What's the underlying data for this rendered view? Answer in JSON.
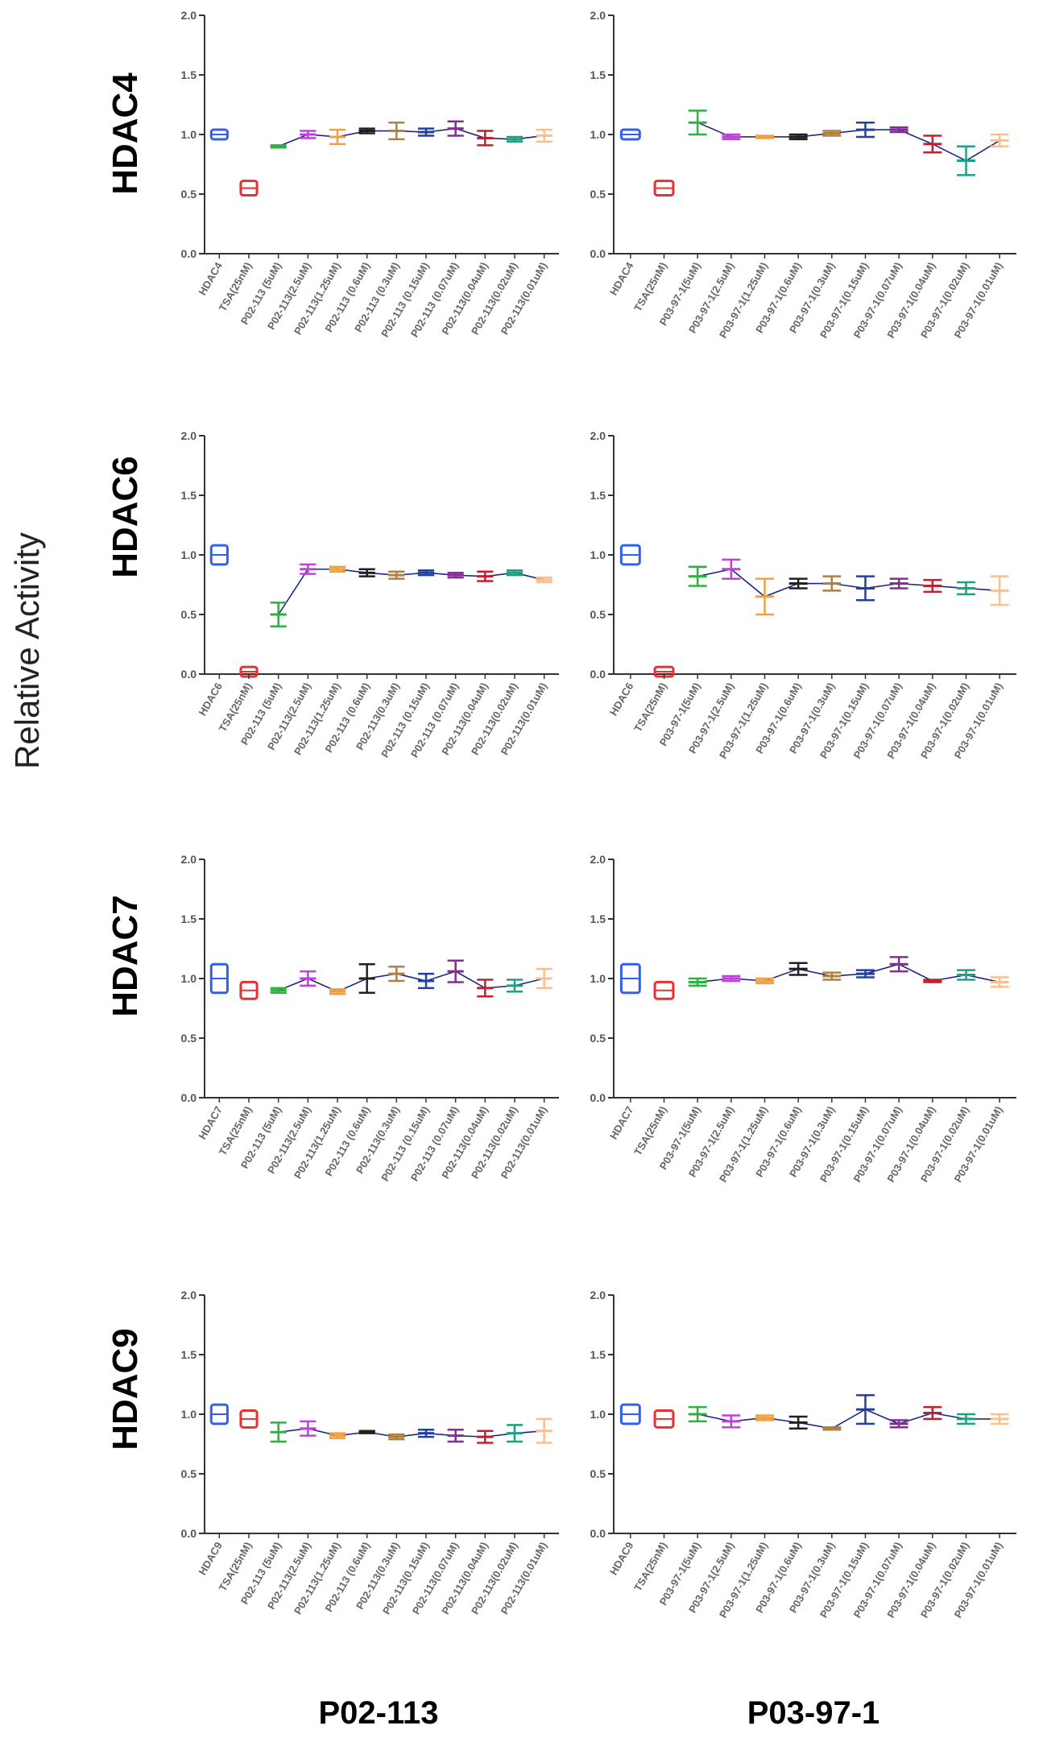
{
  "y_label": "Relative Activity",
  "row_labels": [
    "HDAC4",
    "HDAC6",
    "HDAC7",
    "HDAC9"
  ],
  "column_labels": [
    "P02-113",
    "P03-97-1"
  ],
  "chart_data": [
    {
      "type": "errorbar",
      "categories": [
        "HDAC4",
        "TSA(25nM)",
        "P02-113 (5uM)",
        "P02-113(2.5uM)",
        "P02-113(1.25uM)",
        "P02-113 (0.6uM)",
        "P02-113 (0.3uM)",
        "P02-113 (0.15uM)",
        "P02-113 (0.07uM)",
        "P02-113(0.04uM)",
        "P02-113(0.02uM)",
        "P02-113(0.01uM)"
      ],
      "values": [
        1.0,
        0.55,
        0.9,
        1.0,
        0.98,
        1.03,
        1.03,
        1.02,
        1.05,
        0.97,
        0.96,
        0.99
      ],
      "errors": [
        0.02,
        0.04,
        0.01,
        0.03,
        0.06,
        0.02,
        0.07,
        0.03,
        0.06,
        0.06,
        0.02,
        0.05
      ],
      "colors": [
        "#3060f0",
        "#e83030",
        "#30b040",
        "#c040e0",
        "#f0a040",
        "#202020",
        "#b08040",
        "#2040a0",
        "#803090",
        "#c02030",
        "#20a080",
        "#f8c090"
      ],
      "line_color": "#1a2a80",
      "ylim": [
        0,
        2
      ],
      "yticks": [
        {
          "value": 0,
          "label": "0.0"
        },
        {
          "value": 0.5,
          "label": "0.5"
        },
        {
          "value": 1,
          "label": "1.0"
        },
        {
          "value": 1.5,
          "label": "1.5"
        },
        {
          "value": 2,
          "label": "2.0"
        }
      ]
    },
    {
      "type": "errorbar",
      "categories": [
        "HDAC4",
        "TSA(25nM)",
        "P03-97-1(5uM)",
        "P03-97-1(2.5uM)",
        "P03-97-1(1.25uM)",
        "P03-97-1(0.6uM)",
        "P03-97-1(0.3uM)",
        "P03-97-1(0.15uM)",
        "P03-97-1(0.07uM)",
        "P03-97-1(0.04uM)",
        "P03-97-1(0.02uM)",
        "P03-97-1(0.01uM)"
      ],
      "values": [
        1.0,
        0.55,
        1.1,
        0.98,
        0.98,
        0.98,
        1.01,
        1.04,
        1.04,
        0.92,
        0.78,
        0.95
      ],
      "errors": [
        0.02,
        0.04,
        0.1,
        0.02,
        0.01,
        0.02,
        0.02,
        0.06,
        0.02,
        0.07,
        0.12,
        0.05
      ],
      "colors": [
        "#3060f0",
        "#e83030",
        "#30b040",
        "#c040e0",
        "#f0a040",
        "#202020",
        "#b08040",
        "#2040a0",
        "#803090",
        "#c02030",
        "#20a080",
        "#f8c090"
      ],
      "line_color": "#1a2a80",
      "ylim": [
        0,
        2
      ],
      "yticks": [
        {
          "value": 0,
          "label": "0.0"
        },
        {
          "value": 0.5,
          "label": "0.5"
        },
        {
          "value": 1,
          "label": "1.0"
        },
        {
          "value": 1.5,
          "label": "1.5"
        },
        {
          "value": 2,
          "label": "2.0"
        }
      ]
    },
    {
      "type": "errorbar",
      "categories": [
        "HDAC6",
        "TSA(25nM)",
        "P02-113 (5uM)",
        "P02-113(2.5uM)",
        "P02-113(1.25uM)",
        "P02-113 (0.6uM)",
        "P02-113(0.3uM)",
        "P02-113 (0.15uM)",
        "P02-113 (0.07uM)",
        "P02-113(0.04uM)",
        "P02-113(0.02uM)",
        "P02-113(0.01uM)"
      ],
      "values": [
        1.0,
        0.02,
        0.5,
        0.88,
        0.88,
        0.85,
        0.83,
        0.85,
        0.83,
        0.82,
        0.85,
        0.79
      ],
      "errors": [
        0.06,
        0.02,
        0.1,
        0.04,
        0.02,
        0.03,
        0.03,
        0.02,
        0.02,
        0.04,
        0.02,
        0.02
      ],
      "colors": [
        "#3060f0",
        "#e83030",
        "#30b040",
        "#c040e0",
        "#f0a040",
        "#202020",
        "#b08040",
        "#2040a0",
        "#803090",
        "#c02030",
        "#20a080",
        "#f8c090"
      ],
      "line_color": "#1a2a80",
      "ylim": [
        0,
        2
      ],
      "yticks": [
        {
          "value": 0,
          "label": "0.0"
        },
        {
          "value": 0.5,
          "label": "0.5"
        },
        {
          "value": 1,
          "label": "1.0"
        },
        {
          "value": 1.5,
          "label": "1.5"
        },
        {
          "value": 2,
          "label": "2.0"
        }
      ]
    },
    {
      "type": "errorbar",
      "categories": [
        "HDAC6",
        "TSA(25nM)",
        "P03-97-1(5uM)",
        "P03-97-1(2.5uM)",
        "P03-97-1(1.25uM)",
        "P03-97-1(0.6uM)",
        "P03-97-1(0.3uM)",
        "P03-97-1(0.15uM)",
        "P03-97-1(0.07uM)",
        "P03-97-1(0.04uM)",
        "P03-97-1(0.02uM)",
        "P03-97-1(0.01uM)"
      ],
      "values": [
        1.0,
        0.02,
        0.82,
        0.88,
        0.65,
        0.76,
        0.76,
        0.72,
        0.76,
        0.74,
        0.72,
        0.7
      ],
      "errors": [
        0.06,
        0.02,
        0.08,
        0.08,
        0.15,
        0.04,
        0.06,
        0.1,
        0.04,
        0.05,
        0.05,
        0.12
      ],
      "colors": [
        "#3060f0",
        "#e83030",
        "#30b040",
        "#c040e0",
        "#f0a040",
        "#202020",
        "#b08040",
        "#2040a0",
        "#803090",
        "#c02030",
        "#20a080",
        "#f8c090"
      ],
      "line_color": "#1a2a80",
      "ylim": [
        0,
        2
      ],
      "yticks": [
        {
          "value": 0,
          "label": "0.0"
        },
        {
          "value": 0.5,
          "label": "0.5"
        },
        {
          "value": 1,
          "label": "1.0"
        },
        {
          "value": 1.5,
          "label": "1.5"
        },
        {
          "value": 2,
          "label": "2.0"
        }
      ]
    },
    {
      "type": "errorbar",
      "categories": [
        "HDAC7",
        "TSA(25nM)",
        "P02-113 (5uM)",
        "P02-113(2.5uM)",
        "P02-113(1.25uM)",
        "P02-113 (0.6uM)",
        "P02-113(0.3uM)",
        "P02-113 (0.15uM)",
        "P02-113 (0.07uM)",
        "P02-113(0.04uM)",
        "P02-113(0.02uM)",
        "P02-113(0.01uM)"
      ],
      "values": [
        1.0,
        0.9,
        0.9,
        1.0,
        0.89,
        1.0,
        1.04,
        0.98,
        1.06,
        0.92,
        0.94,
        1.0
      ],
      "errors": [
        0.1,
        0.05,
        0.02,
        0.06,
        0.02,
        0.12,
        0.06,
        0.06,
        0.09,
        0.07,
        0.05,
        0.08
      ],
      "colors": [
        "#3060f0",
        "#e83030",
        "#30b040",
        "#c040e0",
        "#f0a040",
        "#202020",
        "#b08040",
        "#2040a0",
        "#803090",
        "#c02030",
        "#20a080",
        "#f8c090"
      ],
      "line_color": "#1a2a80",
      "ylim": [
        0,
        2
      ],
      "yticks": [
        {
          "value": 0,
          "label": "0.0"
        },
        {
          "value": 0.5,
          "label": "0.5"
        },
        {
          "value": 1,
          "label": "1.0"
        },
        {
          "value": 1.5,
          "label": "1.5"
        },
        {
          "value": 2,
          "label": "2.0"
        }
      ]
    },
    {
      "type": "errorbar",
      "categories": [
        "HDAC7",
        "TSA(25nM)",
        "P03-97-1(5uM)",
        "P03-97-1(2.5uM)",
        "P03-97-1(1.25uM)",
        "P03-97-1(0.6uM)",
        "P03-97-1(0.3uM)",
        "P03-97-1(0.15uM)",
        "P03-97-1(0.07uM)",
        "P03-97-1(0.04uM)",
        "P03-97-1(0.02uM)",
        "P03-97-1(0.01uM)"
      ],
      "values": [
        1.0,
        0.9,
        0.97,
        1.0,
        0.98,
        1.08,
        1.02,
        1.04,
        1.12,
        0.98,
        1.03,
        0.97
      ],
      "errors": [
        0.1,
        0.05,
        0.03,
        0.02,
        0.02,
        0.05,
        0.03,
        0.03,
        0.06,
        0.01,
        0.04,
        0.04
      ],
      "colors": [
        "#3060f0",
        "#e83030",
        "#30b040",
        "#c040e0",
        "#f0a040",
        "#202020",
        "#b08040",
        "#2040a0",
        "#803090",
        "#c02030",
        "#20a080",
        "#f8c090"
      ],
      "line_color": "#1a2a80",
      "ylim": [
        0,
        2
      ],
      "yticks": [
        {
          "value": 0,
          "label": "0.0"
        },
        {
          "value": 0.5,
          "label": "0.5"
        },
        {
          "value": 1,
          "label": "1.0"
        },
        {
          "value": 1.5,
          "label": "1.5"
        },
        {
          "value": 2,
          "label": "2.0"
        }
      ]
    },
    {
      "type": "errorbar",
      "categories": [
        "HDAC9",
        "TSA(25nM)",
        "P02-113 (5uM)",
        "P02-113(2.5uM)",
        "P02-113(1.25uM)",
        "P02-113 (0.6uM)",
        "P02-113(0.3uM)",
        "P02-113(0.15uM)",
        "P02-113(0.07uM)",
        "P02-113(0.04uM)",
        "P02-113(0.02uM)",
        "P02-113(0.01uM)"
      ],
      "values": [
        1.0,
        0.96,
        0.85,
        0.88,
        0.82,
        0.85,
        0.81,
        0.84,
        0.82,
        0.81,
        0.84,
        0.86
      ],
      "errors": [
        0.06,
        0.05,
        0.08,
        0.06,
        0.02,
        0.01,
        0.02,
        0.03,
        0.05,
        0.05,
        0.07,
        0.1
      ],
      "colors": [
        "#3060f0",
        "#e83030",
        "#30b040",
        "#c040e0",
        "#f0a040",
        "#202020",
        "#b08040",
        "#2040a0",
        "#803090",
        "#c02030",
        "#20a080",
        "#f8c090"
      ],
      "line_color": "#1a2a80",
      "ylim": [
        0,
        2
      ],
      "yticks": [
        {
          "value": 0,
          "label": "0.0"
        },
        {
          "value": 0.5,
          "label": "0.5"
        },
        {
          "value": 1,
          "label": "1.0"
        },
        {
          "value": 1.5,
          "label": "1.5"
        },
        {
          "value": 2,
          "label": "2.0"
        }
      ]
    },
    {
      "type": "errorbar",
      "categories": [
        "HDAC9",
        "TSA(25nM)",
        "P03-97-1(5uM)",
        "P03-97-1(2.5uM)",
        "P03-97-1(1.25uM)",
        "P03-97-1(0.6uM)",
        "P03-97-1(0.3uM)",
        "P03-97-1(0.15uM)",
        "P03-97-1(0.07uM)",
        "P03-97-1(0.04uM)",
        "P03-97-1(0.02uM)",
        "P03-97-1(0.01uM)"
      ],
      "values": [
        1.0,
        0.96,
        1.0,
        0.94,
        0.97,
        0.93,
        0.88,
        1.04,
        0.92,
        1.01,
        0.96,
        0.96
      ],
      "errors": [
        0.06,
        0.05,
        0.06,
        0.05,
        0.02,
        0.05,
        0.01,
        0.12,
        0.03,
        0.05,
        0.04,
        0.04
      ],
      "colors": [
        "#3060f0",
        "#e83030",
        "#30b040",
        "#c040e0",
        "#f0a040",
        "#202020",
        "#b08040",
        "#2040a0",
        "#803090",
        "#c02030",
        "#20a080",
        "#f8c090"
      ],
      "line_color": "#1a2a80",
      "ylim": [
        0,
        2
      ],
      "yticks": [
        {
          "value": 0,
          "label": "0.0"
        },
        {
          "value": 0.5,
          "label": "0.5"
        },
        {
          "value": 1,
          "label": "1.0"
        },
        {
          "value": 1.5,
          "label": "1.5"
        },
        {
          "value": 2,
          "label": "2.0"
        }
      ]
    }
  ]
}
